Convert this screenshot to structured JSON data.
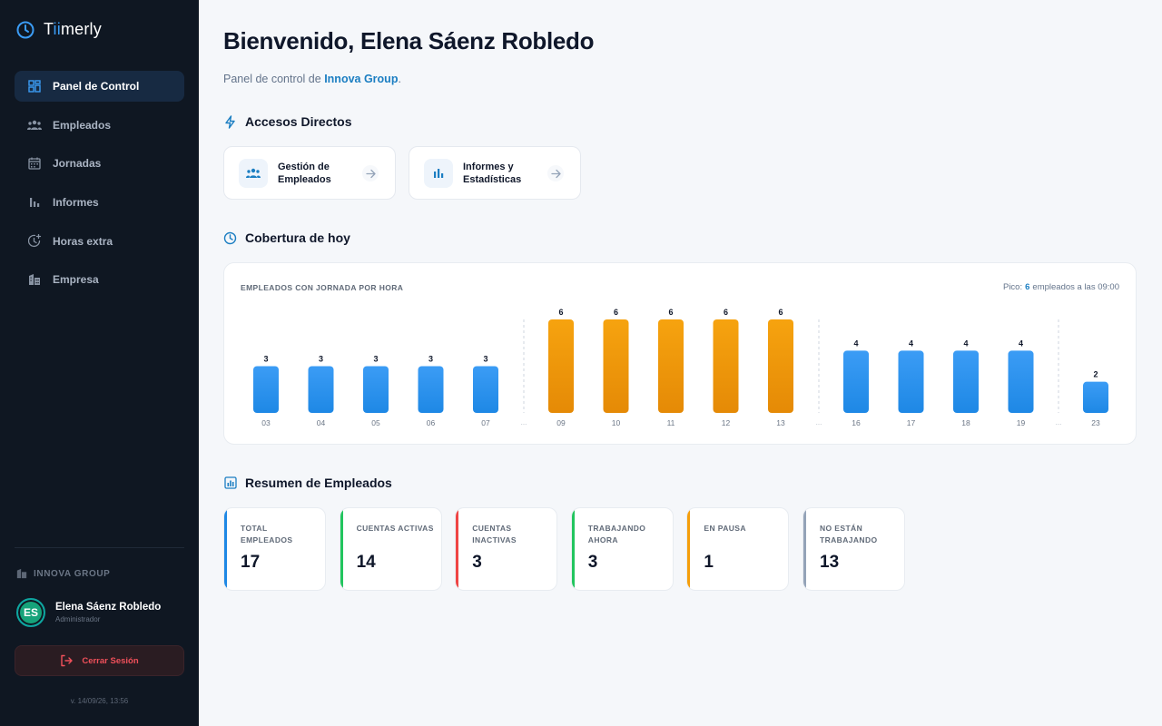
{
  "brand": {
    "name_prefix": "T",
    "name_accent": "ii",
    "name_suffix": "merly"
  },
  "sidebar": {
    "items": [
      {
        "label": "Panel de Control",
        "icon": "dashboard-icon",
        "active": true
      },
      {
        "label": "Empleados",
        "icon": "users-icon",
        "active": false
      },
      {
        "label": "Jornadas",
        "icon": "calendar-icon",
        "active": false
      },
      {
        "label": "Informes",
        "icon": "bar-chart-icon",
        "active": false
      },
      {
        "label": "Horas extra",
        "icon": "clock-plus-icon",
        "active": false
      },
      {
        "label": "Empresa",
        "icon": "building-icon",
        "active": false
      }
    ],
    "company": "INNOVA GROUP",
    "user": {
      "initials": "ES",
      "name": "Elena Sáenz Robledo",
      "role": "Administrador"
    },
    "logout_label": "Cerrar Sesión",
    "version": "v. 14/09/26, 13:56"
  },
  "main": {
    "title": "Bienvenido, Elena Sáenz Robledo",
    "subtitle_prefix": "Panel de control de ",
    "subtitle_company": "Innova Group",
    "subtitle_suffix": ".",
    "shortcuts_title": "Accesos Directos",
    "shortcuts": [
      {
        "label": "Gestión de Empleados",
        "icon": "users-icon"
      },
      {
        "label": "Informes y Estadísticas",
        "icon": "bar-chart-icon"
      }
    ],
    "coverage_title": "Cobertura de hoy",
    "summary_title": "Resumen de Empleados",
    "stats": [
      {
        "label": "TOTAL EMPLEADOS",
        "value": "17",
        "color": "#1e88e5"
      },
      {
        "label": "CUENTAS ACTIVAS",
        "value": "14",
        "color": "#22c55e"
      },
      {
        "label": "CUENTAS INACTIVAS",
        "value": "3",
        "color": "#ef4444"
      },
      {
        "label": "TRABAJANDO AHORA",
        "value": "3",
        "color": "#22c55e"
      },
      {
        "label": "EN PAUSA",
        "value": "1",
        "color": "#f59e0b"
      },
      {
        "label": "NO ESTÁN TRABAJANDO",
        "value": "13",
        "color": "#94a3b8"
      }
    ]
  },
  "chart_data": {
    "type": "bar",
    "title": "EMPLEADOS CON JORNADA POR HORA",
    "peak_prefix": "Pico:",
    "peak_value": "6",
    "peak_suffix": "empleados a las 09:00",
    "categories": [
      "03",
      "04",
      "05",
      "06",
      "07",
      "09",
      "10",
      "11",
      "12",
      "13",
      "16",
      "17",
      "18",
      "19",
      "23"
    ],
    "values": [
      3,
      3,
      3,
      3,
      3,
      6,
      6,
      6,
      6,
      6,
      4,
      4,
      4,
      4,
      2
    ],
    "highlight": [
      false,
      false,
      false,
      false,
      false,
      true,
      true,
      true,
      true,
      true,
      false,
      false,
      false,
      false,
      false
    ],
    "gap_marker": "...",
    "colors": {
      "normal": "#1e88e5",
      "peak": "#f59e0b"
    },
    "ylim": [
      0,
      6
    ]
  }
}
